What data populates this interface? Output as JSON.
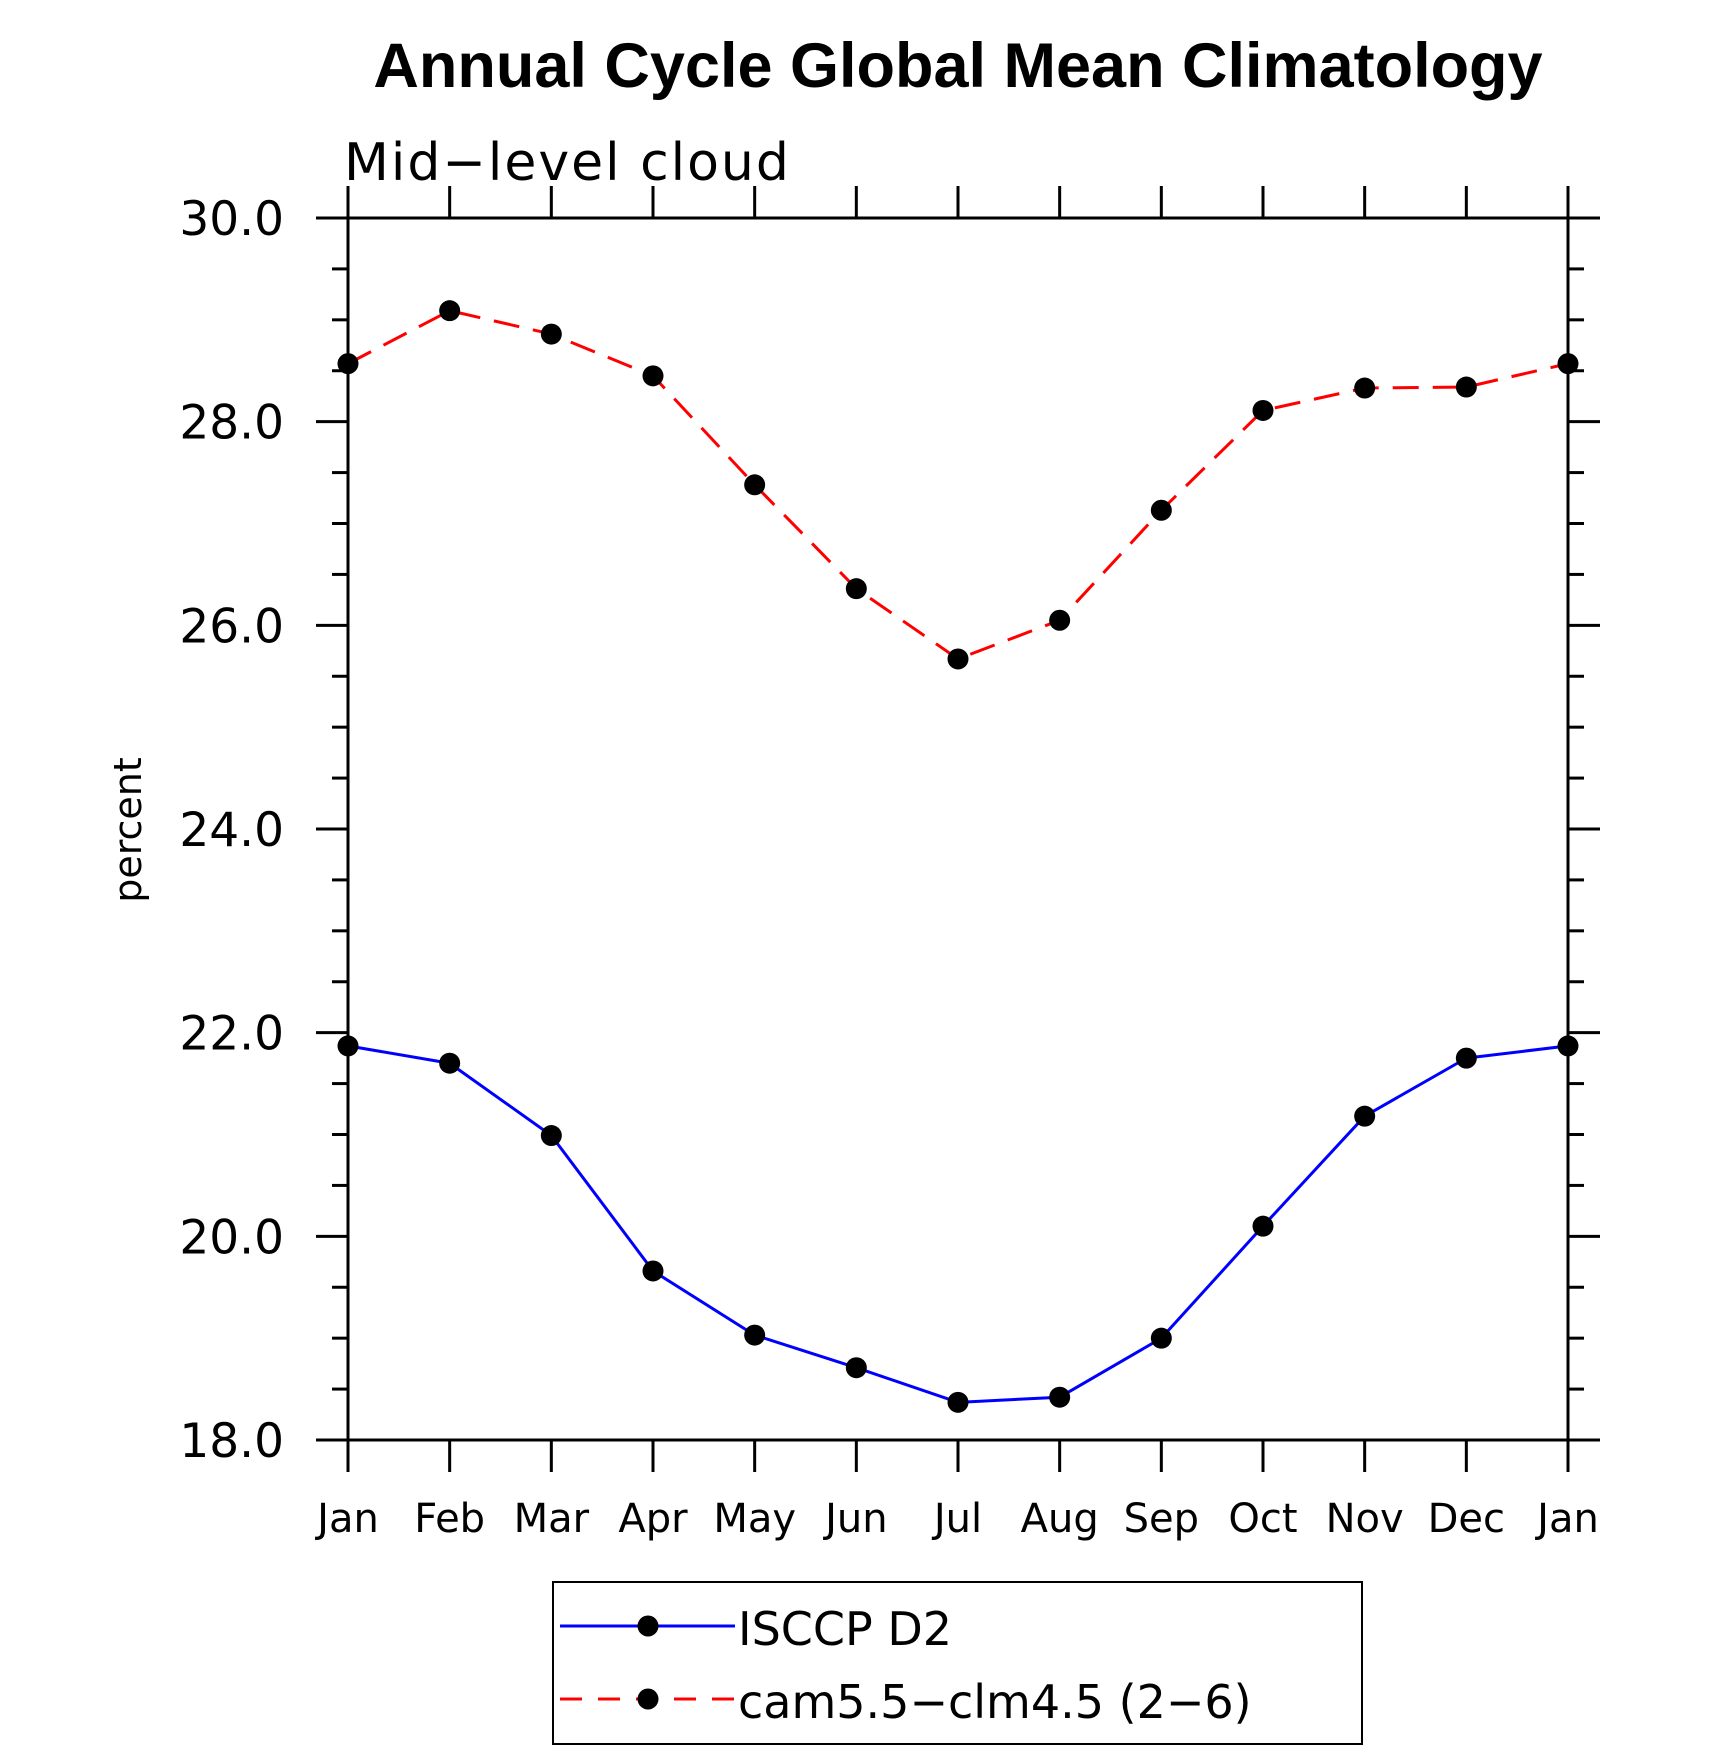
{
  "chart_data": {
    "type": "line",
    "title": "Annual Cycle Global Mean Climatology",
    "subtitle": "Mid−level cloud",
    "xlabel": "",
    "ylabel": "percent",
    "categories": [
      "Jan",
      "Feb",
      "Mar",
      "Apr",
      "May",
      "Jun",
      "Jul",
      "Aug",
      "Sep",
      "Oct",
      "Nov",
      "Dec",
      "Jan"
    ],
    "ylim": [
      18.0,
      30.0
    ],
    "yticks": [
      18.0,
      20.0,
      22.0,
      24.0,
      26.0,
      28.0,
      30.0
    ],
    "ytick_labels": [
      "18.0",
      "20.0",
      "22.0",
      "24.0",
      "26.0",
      "28.0",
      "30.0"
    ],
    "yminor_step": 0.5,
    "grid": false,
    "legend_position": "bottom-center",
    "series": [
      {
        "name": "ISCCP D2",
        "color": "#0000ff",
        "line_style": "solid",
        "marker": "filled-circle",
        "marker_color": "#000000",
        "values": [
          21.87,
          21.7,
          20.99,
          19.66,
          19.03,
          18.71,
          18.37,
          18.42,
          19.0,
          20.1,
          21.18,
          21.75,
          21.87
        ]
      },
      {
        "name": "cam5.5−clm4.5 (2−6)",
        "color": "#ff0000",
        "line_style": "dashed",
        "marker": "filled-circle",
        "marker_color": "#000000",
        "values": [
          28.57,
          29.09,
          28.86,
          28.45,
          27.38,
          26.36,
          25.67,
          26.05,
          27.13,
          28.11,
          28.33,
          28.34,
          28.57
        ]
      }
    ]
  }
}
